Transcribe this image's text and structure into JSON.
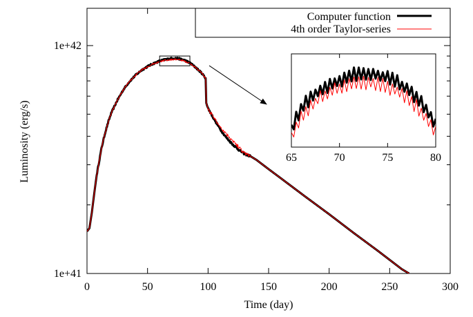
{
  "chart_data": [
    {
      "type": "line",
      "title": "",
      "xlabel": "Time (day)",
      "ylabel": "Luminosity (erg/s)",
      "xlim": [
        0,
        300
      ],
      "ylim": [
        1e+41,
        1.4e+42
      ],
      "yscale": "log",
      "grid": false,
      "legend_position": "top-right",
      "x_ticks": [
        0,
        50,
        100,
        150,
        200,
        250,
        300
      ],
      "x_tick_labels": [
        "0",
        "50",
        "100",
        "150",
        "200",
        "250",
        "300"
      ],
      "y_tick_labels": [
        {
          "value": 1e+42,
          "label": "1e+42"
        },
        {
          "value": 1e+41,
          "label": "1e+41"
        }
      ],
      "zoom_region": {
        "x": [
          60,
          85
        ],
        "y": [
          8.15e+41,
          9e+41
        ]
      },
      "series": [
        {
          "name": "Computer function",
          "color": "#000000",
          "x": [
            0,
            2,
            4,
            6,
            8,
            10,
            12,
            15,
            18,
            20,
            25,
            30,
            35,
            40,
            45,
            50,
            55,
            60,
            65,
            70,
            72,
            75,
            80,
            85,
            90,
            95,
            97,
            98,
            98.5,
            100,
            105,
            110,
            115,
            120,
            125,
            130,
            135,
            140,
            150,
            160,
            180,
            200,
            220,
            240,
            260,
            266
          ],
          "y": [
            1.53e+41,
            1.58e+41,
            1.85e+41,
            2.25e+41,
            2.7e+41,
            3.1e+41,
            3.55e+41,
            4.15e+41,
            4.7e+41,
            5.05e+41,
            5.75e+41,
            6.4e+41,
            6.95e+41,
            7.4e+41,
            7.8e+41,
            8.1e+41,
            8.35e+41,
            8.55e+41,
            8.7e+41,
            8.78e+41,
            8.8e+41,
            8.78e+41,
            8.65e+41,
            8.4e+41,
            8e+41,
            7.55e+41,
            7.3e+41,
            7.2e+41,
            5.6e+41,
            5.3e+41,
            4.75e+41,
            4.3e+41,
            3.95e+41,
            3.7e+41,
            3.5e+41,
            3.35e+41,
            3.27e+41,
            3.15e+41,
            2.87e+41,
            2.62e+41,
            2.18e+41,
            1.82e+41,
            1.51e+41,
            1.26e+41,
            1.045e+41,
            1e+41
          ]
        },
        {
          "name": "4th order Taylor-series",
          "color": "#ff0000",
          "x": [
            0,
            2,
            4,
            6,
            8,
            10,
            12,
            15,
            18,
            20,
            25,
            30,
            35,
            40,
            45,
            50,
            55,
            60,
            65,
            70,
            72,
            75,
            80,
            85,
            90,
            95,
            97,
            98,
            98.5,
            100,
            105,
            110,
            115,
            120,
            125,
            130,
            135,
            140,
            150,
            160,
            180,
            200,
            220,
            240,
            260,
            266
          ],
          "y": [
            1.53e+41,
            1.58e+41,
            1.85e+41,
            2.25e+41,
            2.7e+41,
            3.1e+41,
            3.55e+41,
            4.15e+41,
            4.7e+41,
            5.05e+41,
            5.75e+41,
            6.4e+41,
            6.95e+41,
            7.4e+41,
            7.8e+41,
            8.1e+41,
            8.33e+41,
            8.5e+41,
            8.62e+41,
            8.68e+41,
            8.7e+41,
            8.68e+41,
            8.57e+41,
            8.34e+41,
            8e+41,
            7.55e+41,
            7.3e+41,
            7.2e+41,
            5.6e+41,
            5.3e+41,
            4.8e+41,
            4.4e+41,
            4.1e+41,
            3.85e+41,
            3.6e+41,
            3.38e+41,
            3.27e+41,
            3.15e+41,
            2.87e+41,
            2.62e+41,
            2.18e+41,
            1.82e+41,
            1.51e+41,
            1.26e+41,
            1.045e+41,
            1e+41
          ]
        }
      ]
    },
    {
      "type": "line",
      "title": "",
      "xlabel": "",
      "ylabel": "",
      "xlim": [
        65,
        80
      ],
      "ylim": [
        8.15e+41,
        9e+41
      ],
      "x_ticks": [
        65,
        70,
        75,
        80
      ],
      "x_tick_labels": [
        "65",
        "70",
        "75",
        "80"
      ],
      "grid": false,
      "series": [
        {
          "name": "Computer function",
          "color": "#000000",
          "x": [
            65,
            66,
            67,
            68,
            69,
            70,
            71,
            72,
            73,
            74,
            75,
            76,
            77,
            78,
            79,
            80
          ],
          "y": [
            8.32e+41,
            8.5e+41,
            8.6e+41,
            8.67e+41,
            8.72e+41,
            8.76e+41,
            8.8e+41,
            8.82e+41,
            8.82e+41,
            8.81e+41,
            8.78e+41,
            8.74e+41,
            8.68e+41,
            8.6e+41,
            8.5e+41,
            8.35e+41
          ]
        },
        {
          "name": "4th order Taylor-series",
          "color": "#ff0000",
          "x": [
            65,
            66,
            67,
            68,
            69,
            70,
            71,
            72,
            73,
            74,
            75,
            76,
            77,
            78,
            79,
            80
          ],
          "y": [
            8.25e+41,
            8.42e+41,
            8.52e+41,
            8.6e+41,
            8.65e+41,
            8.69e+41,
            8.72e+41,
            8.74e+41,
            8.74e+41,
            8.73e+41,
            8.7e+41,
            8.66e+41,
            8.6e+41,
            8.52e+41,
            8.42e+41,
            8.28e+41
          ]
        }
      ]
    }
  ]
}
